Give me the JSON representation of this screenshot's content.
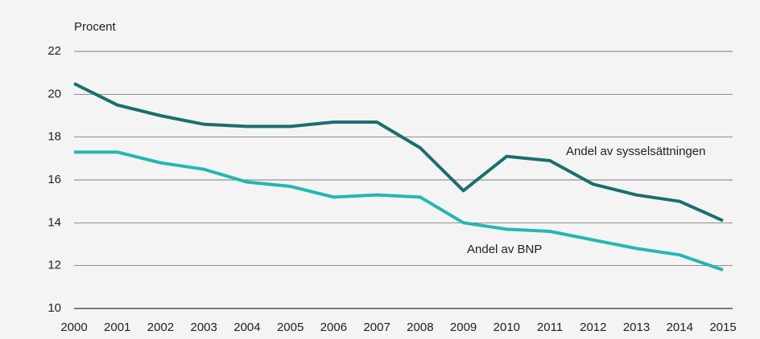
{
  "chart_data": {
    "type": "line",
    "ylabel": "Procent",
    "x": [
      2000,
      2001,
      2002,
      2003,
      2004,
      2005,
      2006,
      2007,
      2008,
      2009,
      2010,
      2011,
      2012,
      2013,
      2014,
      2015
    ],
    "xlim": [
      2000,
      2015
    ],
    "xticks": [
      2000,
      2001,
      2002,
      2003,
      2004,
      2005,
      2006,
      2007,
      2008,
      2009,
      2010,
      2011,
      2012,
      2013,
      2014,
      2015
    ],
    "ylim": [
      10,
      22
    ],
    "yticks": [
      10,
      12,
      14,
      16,
      18,
      20,
      22
    ],
    "grid": true,
    "series": [
      {
        "name": "Andel av sysselsättningen",
        "color": "#1b6e70",
        "values": [
          20.5,
          19.5,
          19.0,
          18.6,
          18.5,
          18.5,
          18.7,
          18.7,
          17.5,
          15.5,
          17.1,
          16.9,
          15.8,
          15.3,
          15.0,
          14.1
        ]
      },
      {
        "name": "Andel av BNP",
        "color": "#22b8b0",
        "values": [
          17.3,
          17.3,
          16.8,
          16.5,
          15.9,
          15.7,
          15.2,
          15.3,
          15.2,
          14.0,
          13.7,
          13.6,
          13.2,
          12.8,
          12.5,
          11.8
        ]
      }
    ]
  }
}
